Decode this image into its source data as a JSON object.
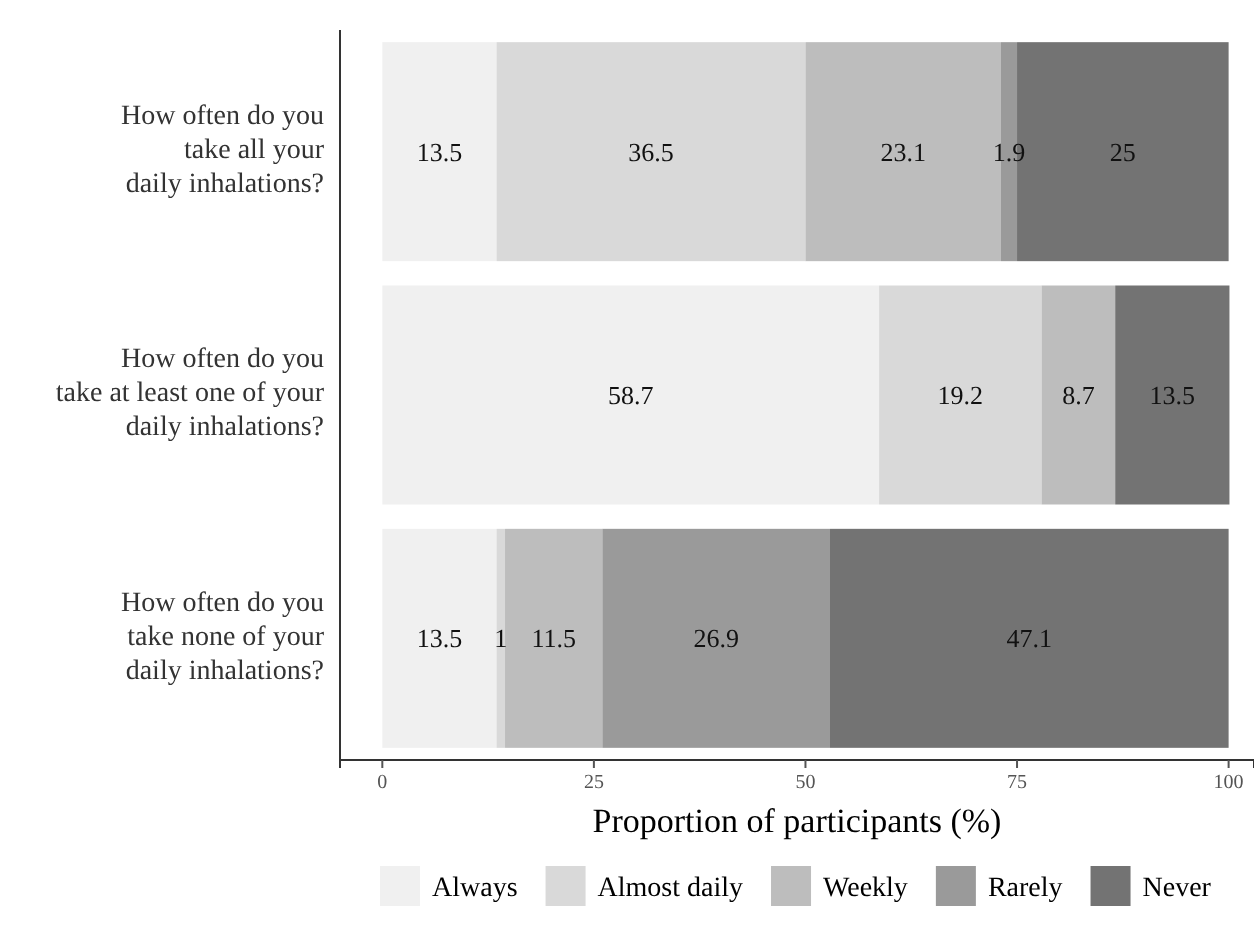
{
  "chart_data": {
    "type": "bar",
    "orientation": "horizontal",
    "stacked": true,
    "xlabel": "Proportion of participants (%)",
    "categories": [
      "How often do you\ntake all your\ndaily inhalations?",
      "How often do you\ntake at least one of your\ndaily inhalations?",
      "How often do you\ntake none of your\ndaily inhalations?"
    ],
    "series": [
      {
        "name": "Always",
        "color": "#f0f0f0",
        "values": [
          13.5,
          58.7,
          13.5
        ]
      },
      {
        "name": "Almost daily",
        "color": "#d9d9d9",
        "values": [
          36.5,
          19.2,
          1
        ]
      },
      {
        "name": "Weekly",
        "color": "#bdbdbd",
        "values": [
          23.1,
          8.7,
          11.5
        ]
      },
      {
        "name": "Rarely",
        "color": "#9a9a9a",
        "values": [
          1.9,
          null,
          26.9
        ]
      },
      {
        "name": "Never",
        "color": "#737373",
        "values": [
          25,
          13.5,
          47.1
        ]
      }
    ],
    "xlim": [
      -5,
      103
    ],
    "xticks": [
      0,
      25,
      50,
      75,
      100
    ],
    "data_labels": true,
    "legend": "bottom",
    "grid": false
  }
}
